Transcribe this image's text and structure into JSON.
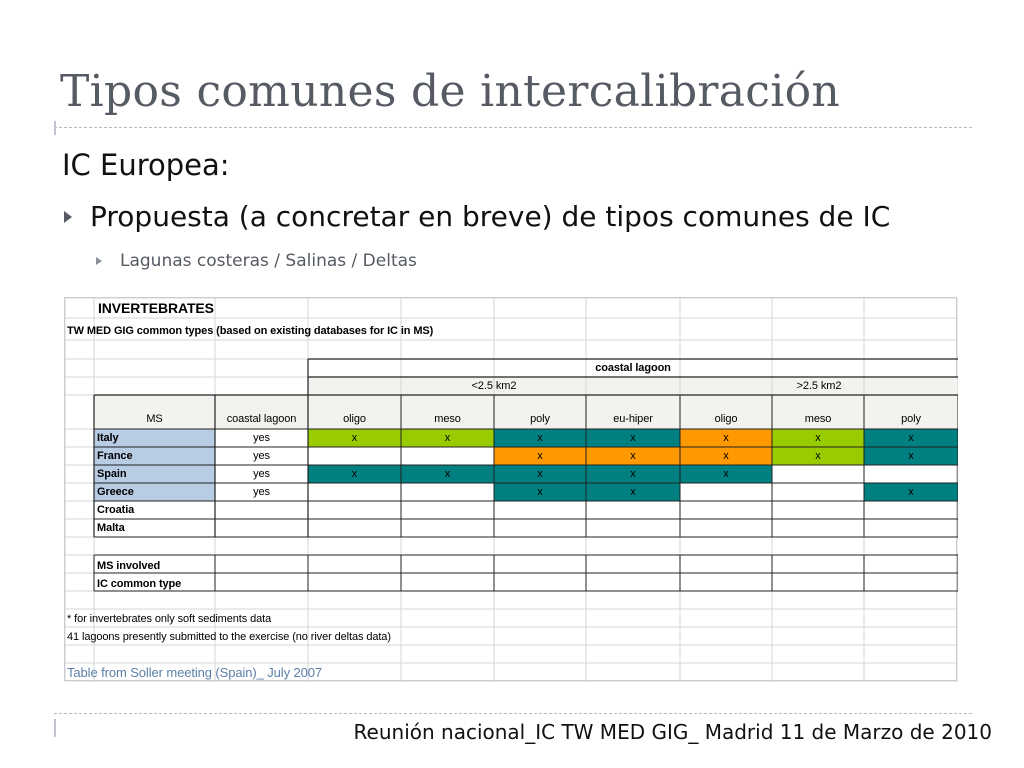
{
  "slide": {
    "title": "Tipos comunes de intercalibración",
    "heading": "IC Europea:",
    "bullet_1": "Propuesta (a concretar en breve) de tipos comunes de IC",
    "bullet_2": "Lagunas costeras / Salinas / Deltas",
    "footer": "Reunión nacional_IC TW MED GIG_ Madrid 11 de Marzo de 2010"
  },
  "table": {
    "title": "INVERTEBRATES",
    "subtitle": "TW MED GIG common types (based on existing databases for IC in MS)",
    "group_header": "coastal lagoon",
    "size_small": "<2.5 km2",
    "size_large": ">2.5 km2",
    "col_ms": "MS",
    "col_lagoon": "coastal lagoon",
    "columns": [
      "oligo",
      "meso",
      "poly",
      "eu-hiper",
      "oligo",
      "meso",
      "poly"
    ],
    "rows": [
      {
        "ms": "Italy",
        "lagoon": "yes",
        "cells": [
          "x",
          "x",
          "x",
          "x",
          "x",
          "x",
          "x"
        ],
        "colors": [
          "g",
          "g",
          "t",
          "t",
          "o",
          "g",
          "t"
        ]
      },
      {
        "ms": "France",
        "lagoon": "yes",
        "cells": [
          "",
          "",
          "x",
          "x",
          "x",
          "x",
          "x"
        ],
        "colors": [
          "",
          "",
          "o",
          "o",
          "o",
          "g",
          "t"
        ]
      },
      {
        "ms": "Spain",
        "lagoon": "yes",
        "cells": [
          "x",
          "x",
          "x",
          "x",
          "x",
          "",
          ""
        ],
        "colors": [
          "t",
          "t",
          "t",
          "t",
          "t",
          "",
          ""
        ]
      },
      {
        "ms": "Greece",
        "lagoon": "yes",
        "cells": [
          "",
          "",
          "x",
          "x",
          "",
          "",
          "x"
        ],
        "colors": [
          "",
          "",
          "t",
          "t",
          "",
          "",
          "t"
        ]
      },
      {
        "ms": "Croatia",
        "lagoon": "",
        "cells": [
          "",
          "",
          "",
          "",
          "",
          "",
          ""
        ],
        "colors": [
          "",
          "",
          "",
          "",
          "",
          "",
          ""
        ]
      },
      {
        "ms": "Malta",
        "lagoon": "",
        "cells": [
          "",
          "",
          "",
          "",
          "",
          "",
          ""
        ],
        "colors": [
          "",
          "",
          "",
          "",
          "",
          "",
          ""
        ]
      }
    ],
    "ms_involved": "MS involved",
    "ic_common_type": "IC common type",
    "note_1": "* for invertebrates only soft sediments data",
    "note_2": "41 lagoons presently submitted to the exercise (no river deltas data)",
    "source": "Table from Soller meeting (Spain)_ July 2007"
  },
  "colors": {
    "green": "#99cc00",
    "teal": "#008080",
    "orange": "#ff9900",
    "ms_fill": "#b8cce4",
    "header_fill": "#f2f2ee",
    "source_text": "#5b7fa6"
  }
}
